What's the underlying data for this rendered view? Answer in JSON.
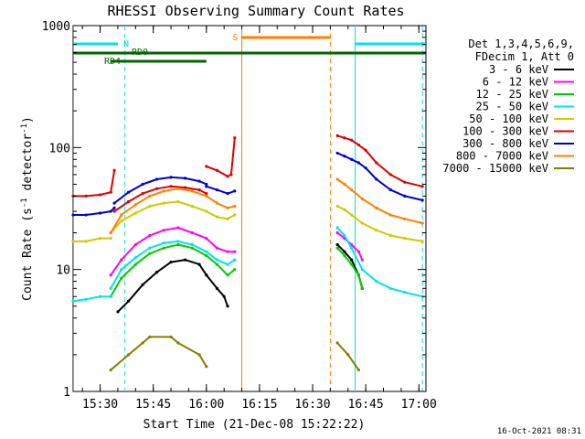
{
  "chart_data": {
    "type": "line",
    "title": "RHESSI Observing Summary Count Rates",
    "xlabel": "Start Time (21-Dec-08 15:22:22)",
    "ylabel_parts": [
      "Count Rate (s",
      "-1",
      " detector",
      "-1",
      ")"
    ],
    "xlim": [
      "15:22:22",
      "17:02"
    ],
    "ylim": [
      1,
      1000
    ],
    "yscale": "log",
    "x_ticks": [
      "15:30",
      "15:45",
      "16:00",
      "16:15",
      "16:30",
      "16:45",
      "17:00"
    ],
    "y_ticks": [
      "1",
      "10",
      "100",
      "1000"
    ],
    "timestamp": "16-Oct-2021 08:31",
    "legend": {
      "position": "right",
      "header": [
        "Det 1,3,4,5,6,9,",
        "FDecim 1, Att 0"
      ],
      "entries": [
        {
          "label": "3 - 6 keV",
          "color": "#000000"
        },
        {
          "label": "6 - 12 keV",
          "color": "#ff00ff"
        },
        {
          "label": "12 - 25 keV",
          "color": "#00cc00"
        },
        {
          "label": "25 - 50 keV",
          "color": "#00e5e5"
        },
        {
          "label": "50 - 100 keV",
          "color": "#cccc00"
        },
        {
          "label": "100 - 300 keV",
          "color": "#dd0000"
        },
        {
          "label": "300 - 800 keV",
          "color": "#0000cc"
        },
        {
          "label": "800 - 7000 keV",
          "color": "#ff8000"
        },
        {
          "label": "7000 - 15000 keV",
          "color": "#808000"
        }
      ]
    },
    "flags": [
      {
        "label": "N",
        "color": "#00e5e5",
        "segments": [
          [
            "15:22:22",
            "15:35"
          ],
          [
            "16:42",
            "17:02"
          ]
        ]
      },
      {
        "label": "S",
        "color": "#ff8000",
        "segments": [
          [
            "16:10",
            "16:35"
          ]
        ]
      },
      {
        "label": "RD0",
        "color": "#006600",
        "segments": [
          [
            "15:22:22",
            "17:02"
          ]
        ]
      },
      {
        "label": "RD4",
        "color": "#006600",
        "segments": [
          [
            "15:33",
            "16:00"
          ]
        ]
      }
    ],
    "vlines": [
      {
        "x": "15:22:30",
        "color": "#00e5e5",
        "style": "solid"
      },
      {
        "x": "15:37",
        "color": "#00e5e5",
        "style": "dashed"
      },
      {
        "x": "16:10",
        "color": "#ff8000",
        "style": "solid"
      },
      {
        "x": "16:35",
        "color": "#ff8000",
        "style": "dashed"
      },
      {
        "x": "16:42",
        "color": "#00e5e5",
        "style": "solid"
      },
      {
        "x": "17:01",
        "color": "#00e5e5",
        "style": "dashed"
      }
    ],
    "series": [
      {
        "name": "3 - 6 keV",
        "color": "#000000",
        "segments": [
          {
            "x": [
              "15:35",
              "15:38",
              "15:42",
              "15:46",
              "15:50",
              "15:54",
              "15:58",
              "16:00",
              "16:03",
              "16:05",
              "16:06"
            ],
            "y": [
              4.5,
              5.5,
              7.5,
              9.5,
              11.5,
              12,
              11,
              9,
              7,
              6,
              5
            ]
          },
          {
            "x": [
              "16:37",
              "16:39",
              "16:41",
              "16:43",
              "16:44"
            ],
            "y": [
              16,
              14,
              12,
              9,
              7
            ]
          }
        ]
      },
      {
        "name": "6 - 12 keV",
        "color": "#ff00ff",
        "segments": [
          {
            "x": [
              "15:33",
              "15:36",
              "15:40",
              "15:44",
              "15:48",
              "15:52",
              "15:56",
              "16:00",
              "16:03",
              "16:06",
              "16:08"
            ],
            "y": [
              9,
              12,
              16,
              19,
              21,
              22,
              20,
              18,
              15,
              14,
              14
            ]
          },
          {
            "x": [
              "16:37",
              "16:39",
              "16:41",
              "16:43",
              "16:44"
            ],
            "y": [
              20,
              18,
              16,
              14,
              12
            ]
          }
        ]
      },
      {
        "name": "12 - 25 keV",
        "color": "#00cc00",
        "segments": [
          {
            "x": [
              "15:33",
              "15:36",
              "15:40",
              "15:44",
              "15:48",
              "15:52",
              "15:56",
              "16:00",
              "16:03",
              "16:06",
              "16:08"
            ],
            "y": [
              6,
              8.5,
              11,
              13.5,
              15,
              16,
              15,
              13,
              11,
              9,
              10
            ]
          },
          {
            "x": [
              "16:37",
              "16:39",
              "16:41",
              "16:43",
              "16:44"
            ],
            "y": [
              15,
              13,
              11,
              9,
              7
            ]
          }
        ]
      },
      {
        "name": "25 - 50 keV",
        "color": "#00e5e5",
        "segments": [
          {
            "x": [
              "15:22:22",
              "15:26",
              "15:30",
              "15:33"
            ],
            "y": [
              5.5,
              5.7,
              6,
              6
            ]
          },
          {
            "x": [
              "15:33",
              "15:36",
              "15:40",
              "15:44",
              "15:48",
              "15:52",
              "15:56",
              "16:00",
              "16:03",
              "16:06",
              "16:08"
            ],
            "y": [
              7,
              10,
              12.5,
              15,
              16.5,
              17,
              16,
              14,
              12,
              11,
              12
            ]
          },
          {
            "x": [
              "16:37",
              "16:39",
              "16:41",
              "16:44",
              "16:48",
              "16:52",
              "16:56",
              "17:01"
            ],
            "y": [
              22,
              19,
              15,
              10,
              8,
              7,
              6.5,
              6
            ]
          }
        ]
      },
      {
        "name": "50 - 100 keV",
        "color": "#cccc00",
        "segments": [
          {
            "x": [
              "15:22:22",
              "15:26",
              "15:30",
              "15:33"
            ],
            "y": [
              17,
              17,
              18,
              18
            ]
          },
          {
            "x": [
              "15:33",
              "15:36",
              "15:40",
              "15:44",
              "15:48",
              "15:52",
              "15:56",
              "16:00",
              "16:03",
              "16:06",
              "16:08"
            ],
            "y": [
              20,
              25,
              29,
              33,
              35,
              36,
              33,
              30,
              27,
              26,
              28
            ]
          },
          {
            "x": [
              "16:37",
              "16:39",
              "16:41",
              "16:44",
              "16:48",
              "16:52",
              "16:56",
              "17:01"
            ],
            "y": [
              33,
              31,
              28,
              24,
              21,
              19,
              18,
              17
            ]
          }
        ]
      },
      {
        "name": "100 - 300 keV",
        "color": "#dd0000",
        "segments": [
          {
            "x": [
              "15:22:22",
              "15:26",
              "15:30",
              "15:33",
              "15:34"
            ],
            "y": [
              40,
              40,
              41,
              43,
              65
            ]
          },
          {
            "x": [
              "15:34",
              "15:38",
              "15:42",
              "15:46",
              "15:50",
              "15:54",
              "15:58",
              "16:00"
            ],
            "y": [
              30,
              36,
              42,
              46,
              48,
              47,
              45,
              42
            ]
          },
          {
            "x": [
              "16:00",
              "16:03",
              "16:06",
              "16:07",
              "16:08"
            ],
            "y": [
              70,
              65,
              58,
              60,
              120
            ]
          },
          {
            "x": [
              "16:37",
              "16:39",
              "16:41",
              "16:43",
              "16:45",
              "16:48",
              "16:52",
              "16:56",
              "17:01"
            ],
            "y": [
              125,
              120,
              115,
              105,
              95,
              75,
              60,
              52,
              48
            ]
          }
        ]
      },
      {
        "name": "300 - 800 keV",
        "color": "#0000cc",
        "segments": [
          {
            "x": [
              "15:22:22",
              "15:26",
              "15:30",
              "15:33",
              "15:34"
            ],
            "y": [
              28,
              28,
              29,
              30,
              32
            ]
          },
          {
            "x": [
              "15:34",
              "15:38",
              "15:42",
              "15:46",
              "15:50",
              "15:54",
              "15:58",
              "16:00"
            ],
            "y": [
              35,
              43,
              50,
              55,
              57,
              56,
              53,
              50
            ]
          },
          {
            "x": [
              "16:00",
              "16:03",
              "16:06",
              "16:08"
            ],
            "y": [
              48,
              45,
              42,
              44
            ]
          },
          {
            "x": [
              "16:37",
              "16:39",
              "16:41",
              "16:43",
              "16:45",
              "16:48",
              "16:52",
              "16:56",
              "17:01"
            ],
            "y": [
              90,
              85,
              80,
              75,
              68,
              55,
              45,
              40,
              37
            ]
          }
        ]
      },
      {
        "name": "800 - 7000 keV",
        "color": "#ff8000",
        "segments": [
          {
            "x": [
              "15:33",
              "15:36",
              "15:40",
              "15:44",
              "15:48",
              "15:52",
              "15:56",
              "16:00",
              "16:03",
              "16:06",
              "16:08"
            ],
            "y": [
              20,
              28,
              34,
              40,
              44,
              46,
              44,
              40,
              35,
              32,
              33
            ]
          },
          {
            "x": [
              "16:37",
              "16:39",
              "16:41",
              "16:44",
              "16:48",
              "16:52",
              "16:56",
              "17:01"
            ],
            "y": [
              55,
              50,
              45,
              38,
              32,
              28,
              26,
              24
            ]
          }
        ]
      },
      {
        "name": "7000 - 15000 keV",
        "color": "#808000",
        "segments": [
          {
            "x": [
              "15:33",
              "15:38",
              "15:42",
              "15:44",
              "15:50",
              "15:52",
              "15:58",
              "16:00"
            ],
            "y": [
              1.5,
              2,
              2.5,
              2.8,
              2.8,
              2.5,
              2,
              1.6
            ]
          },
          {
            "x": [
              "16:37",
              "16:40",
              "16:43"
            ],
            "y": [
              2.5,
              2,
              1.5
            ]
          }
        ]
      }
    ]
  }
}
